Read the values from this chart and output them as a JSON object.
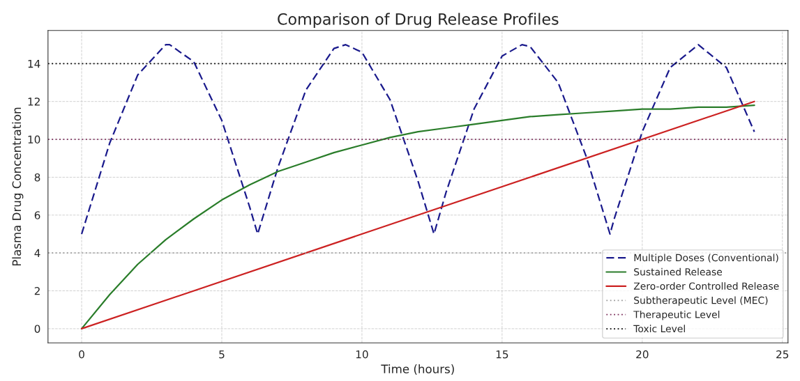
{
  "chart_data": {
    "type": "line",
    "title": "Comparison of Drug Release Profiles",
    "xlabel": "Time (hours)",
    "ylabel": "Plasma Drug Concentration",
    "series": [
      {
        "name": "Multiple Doses (Conventional)",
        "color": "#1a1a8c",
        "line_style": "dashed",
        "x": [
          0,
          1,
          2,
          3,
          3.14,
          4,
          5,
          6,
          6.28,
          7,
          8,
          9,
          9.42,
          10,
          11,
          12,
          12.57,
          13,
          14,
          15,
          15.71,
          16,
          17,
          18,
          18.85,
          19,
          20,
          21,
          22,
          23,
          24
        ],
        "values": [
          5,
          9.8,
          13.4,
          15,
          15,
          14.1,
          11,
          6.4,
          5,
          8.5,
          12.6,
          14.8,
          15,
          14.6,
          12.1,
          7.8,
          5,
          7.2,
          11.6,
          14.4,
          15,
          14.9,
          13,
          9.1,
          5,
          5.8,
          10.4,
          13.8,
          15,
          13.8,
          10.4
        ]
      },
      {
        "name": "Sustained Release",
        "color": "#2a7d2a",
        "line_style": "solid",
        "x": [
          0,
          1,
          2,
          3,
          4,
          5,
          6,
          7,
          8,
          9,
          10,
          11,
          12,
          13,
          14,
          15,
          16,
          17,
          18,
          19,
          20,
          21,
          22,
          23,
          24
        ],
        "values": [
          0,
          1.8,
          3.4,
          4.7,
          5.8,
          6.8,
          7.6,
          8.3,
          8.8,
          9.3,
          9.7,
          10.1,
          10.4,
          10.6,
          10.8,
          11,
          11.2,
          11.3,
          11.4,
          11.5,
          11.6,
          11.6,
          11.7,
          11.7,
          11.8
        ]
      },
      {
        "name": "Zero-order Controlled Release",
        "color": "#cc2222",
        "line_style": "solid",
        "x": [
          0,
          24
        ],
        "values": [
          0,
          12
        ]
      }
    ],
    "ref_lines": [
      {
        "axis": "y",
        "value": 4,
        "label": "Subtherapeutic Level (MEC)",
        "color": "#999999",
        "line_style": "dotted"
      },
      {
        "axis": "y",
        "value": 10,
        "label": "Therapeutic Level",
        "color": "#7b2d5a",
        "line_style": "dotted"
      },
      {
        "axis": "y",
        "value": 14,
        "label": "Toxic Level",
        "color": "#000000",
        "line_style": "dotted"
      }
    ],
    "xlim": [
      -1.2,
      25.2
    ],
    "xticks": [
      0,
      5,
      10,
      15,
      20,
      25
    ],
    "ylim": [
      -0.75,
      15.75
    ],
    "yticks": [
      0,
      2,
      4,
      6,
      8,
      10,
      12,
      14
    ],
    "grid": true,
    "legend": "bottom right"
  }
}
